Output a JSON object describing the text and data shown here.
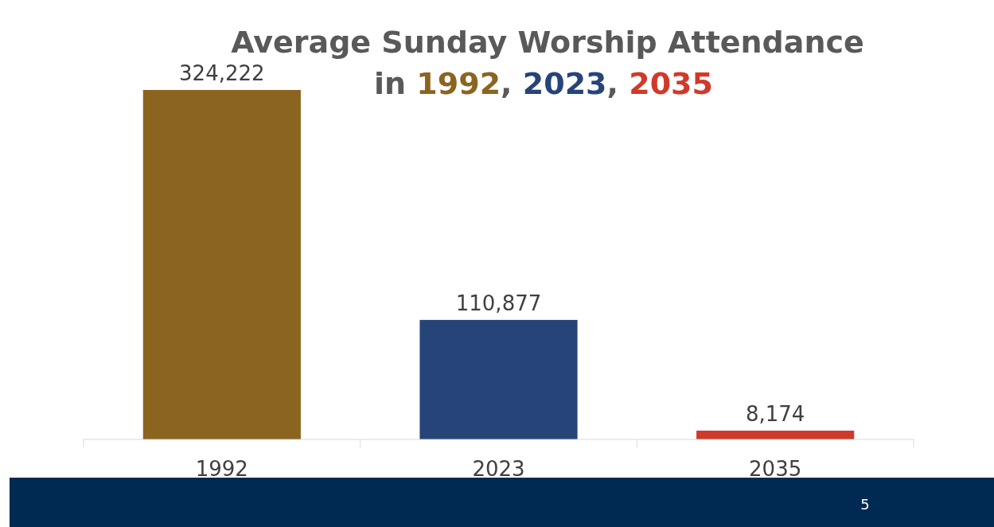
{
  "chart_data": {
    "type": "bar",
    "title": "Average Sunday Worship Attendance",
    "subtitle": "in 1992, 2023, 2035",
    "categories": [
      "1992",
      "2023",
      "2035"
    ],
    "values": [
      324222,
      110877,
      8174
    ],
    "value_labels": [
      "324,222",
      "110,877",
      "8,174"
    ],
    "colors": [
      "#8b6520",
      "#264478",
      "#d03a2b"
    ],
    "annotations": [
      "5"
    ]
  }
}
